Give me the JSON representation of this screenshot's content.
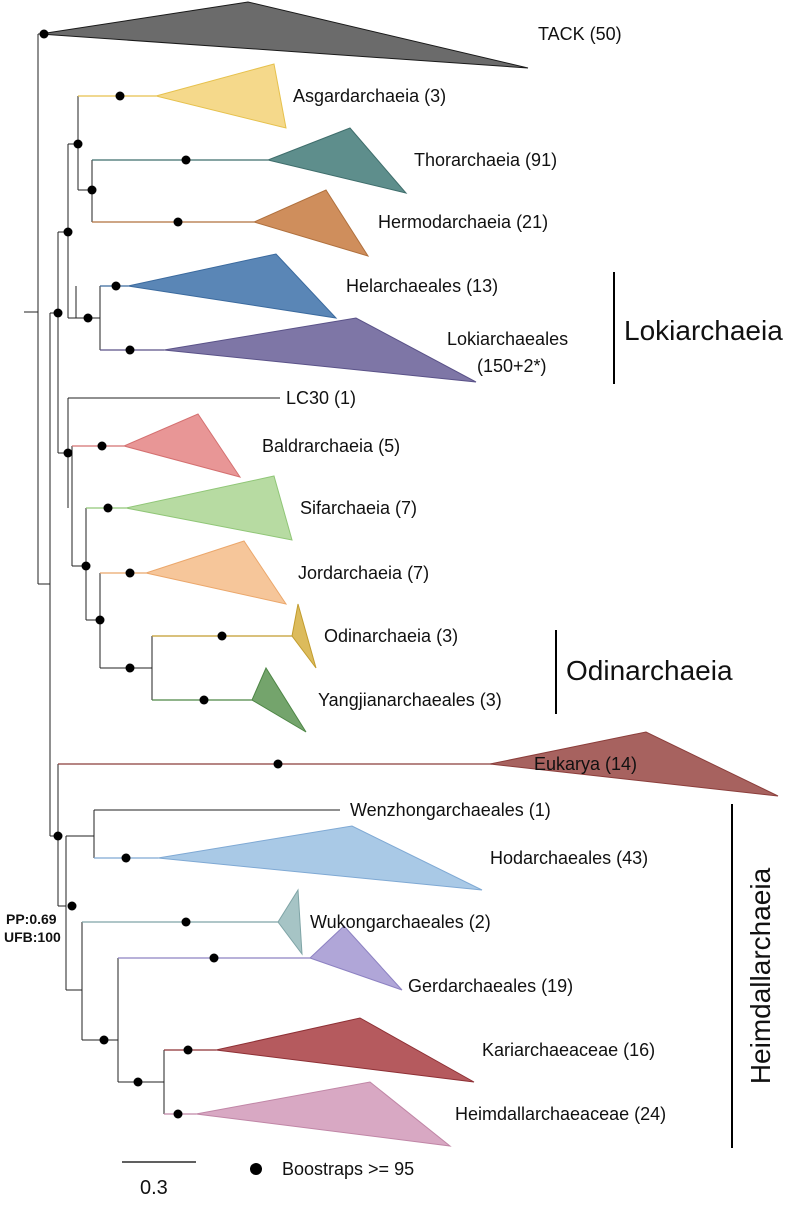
{
  "clades": [
    {
      "id": "tack",
      "label": "TACK (50)",
      "color": "#6b6b6b",
      "stroke": "#1a1a1a"
    },
    {
      "id": "asgard",
      "label": "Asgardarchaeia (3)",
      "color": "#f5d98b",
      "stroke": "#e6c14d"
    },
    {
      "id": "thor",
      "label": "Thorarchaeia (91)",
      "color": "#5e8e8c",
      "stroke": "#3f6e6c"
    },
    {
      "id": "hermod",
      "label": "Hermodarchaeia (21)",
      "color": "#cf8e5c",
      "stroke": "#b0703d"
    },
    {
      "id": "hel",
      "label": "Helarchaeales (13)",
      "color": "#5a86b6",
      "stroke": "#3b6a9e"
    },
    {
      "id": "loki",
      "label": "Lokiarchaeales",
      "label2": "(150+2*)",
      "color": "#7e76a6",
      "stroke": "#5a5288"
    },
    {
      "id": "lc30",
      "label": "LC30 (1)",
      "color": "#333333",
      "stroke": "#333333"
    },
    {
      "id": "baldr",
      "label": "Baldrarchaeia (5)",
      "color": "#e89696",
      "stroke": "#d47070"
    },
    {
      "id": "sif",
      "label": "Sifarchaeia (7)",
      "color": "#b7dba2",
      "stroke": "#90c677"
    },
    {
      "id": "jord",
      "label": "Jordarchaeia (7)",
      "color": "#f6c69a",
      "stroke": "#eba76b"
    },
    {
      "id": "odin",
      "label": "Odinarchaeia (3)",
      "color": "#dcbb5c",
      "stroke": "#c29c2d"
    },
    {
      "id": "yang",
      "label": "Yangjianarchaeales (3)",
      "color": "#74a46c",
      "stroke": "#4e8646"
    },
    {
      "id": "euk",
      "label": "Eukarya (14)",
      "color": "#a7625f",
      "stroke": "#8b3e3b"
    },
    {
      "id": "wenz",
      "label": "Wenzhongarchaeales (1)",
      "color": "#333333",
      "stroke": "#333333"
    },
    {
      "id": "hod",
      "label": "Hodarchaeales (43)",
      "color": "#a9c9e6",
      "stroke": "#7fa9d4"
    },
    {
      "id": "wukong",
      "label": "Wukongarchaeales (2)",
      "color": "#a6c4c5",
      "stroke": "#7fa4a6"
    },
    {
      "id": "gerd",
      "label": "Gerdarchaeales (19)",
      "color": "#b0a6d8",
      "stroke": "#8d82c2"
    },
    {
      "id": "kari",
      "label": "Kariarchaeaceae (16)",
      "color": "#b55a5e",
      "stroke": "#8e3035"
    },
    {
      "id": "heim",
      "label": "Heimdallarchaeaceae (24)",
      "color": "#d8a8c3",
      "stroke": "#c086a6"
    }
  ],
  "groups": {
    "lokiarchaeia": "Lokiarchaeia",
    "odinarchaeia": "Odinarchaeia",
    "heimdallarchaeia": "Heimdallarchaeia"
  },
  "support_note": {
    "line1": "PP:0.69",
    "line2": "UFB:100"
  },
  "scale_bar": {
    "value": "0.3"
  },
  "legend": {
    "label": "Boostraps >= 95"
  }
}
